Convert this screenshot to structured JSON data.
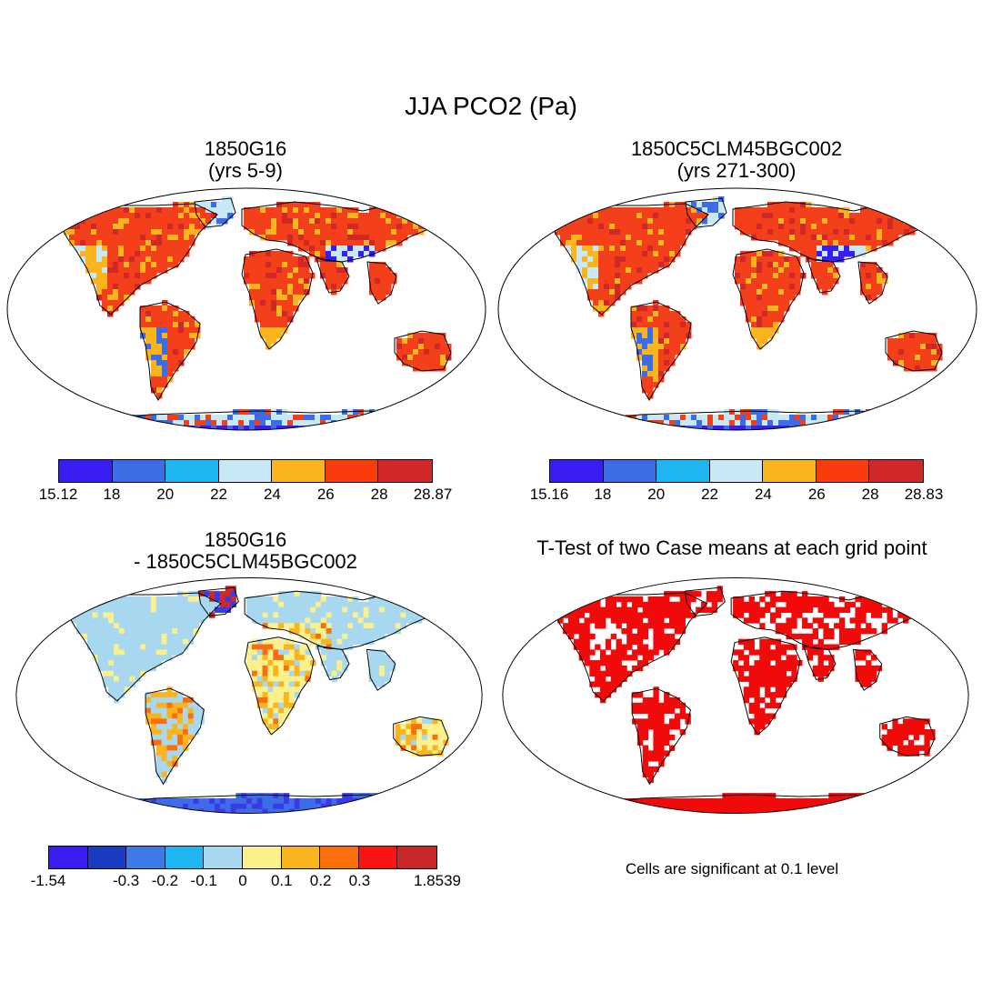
{
  "title": "JJA PCO2 (Pa)",
  "panels": [
    {
      "id": "p1",
      "title_line1": "1850G16",
      "title_line2": "(yrs 5-9)",
      "colorbar": {
        "colors": [
          "#3a1df0",
          "#3d6de6",
          "#1fb5f0",
          "#c7e8f5",
          "#fab41e",
          "#fa3c0c",
          "#d02828"
        ],
        "labels": [
          "15.12",
          "18",
          "20",
          "22",
          "24",
          "26",
          "28",
          "28.87"
        ]
      }
    },
    {
      "id": "p2",
      "title_line1": "1850C5CLM45BGC002",
      "title_line2": "(yrs 271-300)",
      "colorbar": {
        "colors": [
          "#3a1df0",
          "#3d6de6",
          "#1fb5f0",
          "#c7e8f5",
          "#fab41e",
          "#fa3c0c",
          "#d02828"
        ],
        "labels": [
          "15.16",
          "18",
          "20",
          "22",
          "24",
          "26",
          "28",
          "28.83"
        ]
      }
    },
    {
      "id": "p3",
      "title_line1": "1850G16",
      "title_line2": "- 1850C5CLM45BGC002",
      "colorbar": {
        "colors": [
          "#3a1df0",
          "#1a3cc0",
          "#3d7ce8",
          "#1fb5f0",
          "#a8d8f0",
          "#faf08c",
          "#fab41e",
          "#fa6e0c",
          "#fa1414",
          "#c82828"
        ],
        "labels": [
          "-1.54",
          "-0.3",
          "-0.2",
          "-0.1",
          "0",
          "0.1",
          "0.2",
          "0.3",
          "1.8539"
        ]
      }
    },
    {
      "id": "p4",
      "title_line1": "T-Test of two Case means at each grid point",
      "note": "Cells are significant at 0.1 level"
    }
  ],
  "map_colors": {
    "ocean": "#ffffff",
    "coast": "#000000",
    "land_main": "#f4401a",
    "land_warm": "#fab41e",
    "land_hot": "#d02828",
    "land_cool": "#c7e8f5",
    "land_cold": "#3a1df0",
    "land_mid": "#3d6de6",
    "diff_pos": "#faf08c",
    "diff_neg": "#a8d8f0",
    "diff_strong_neg": "#3a3ae6",
    "signif": "#f00a0a"
  }
}
